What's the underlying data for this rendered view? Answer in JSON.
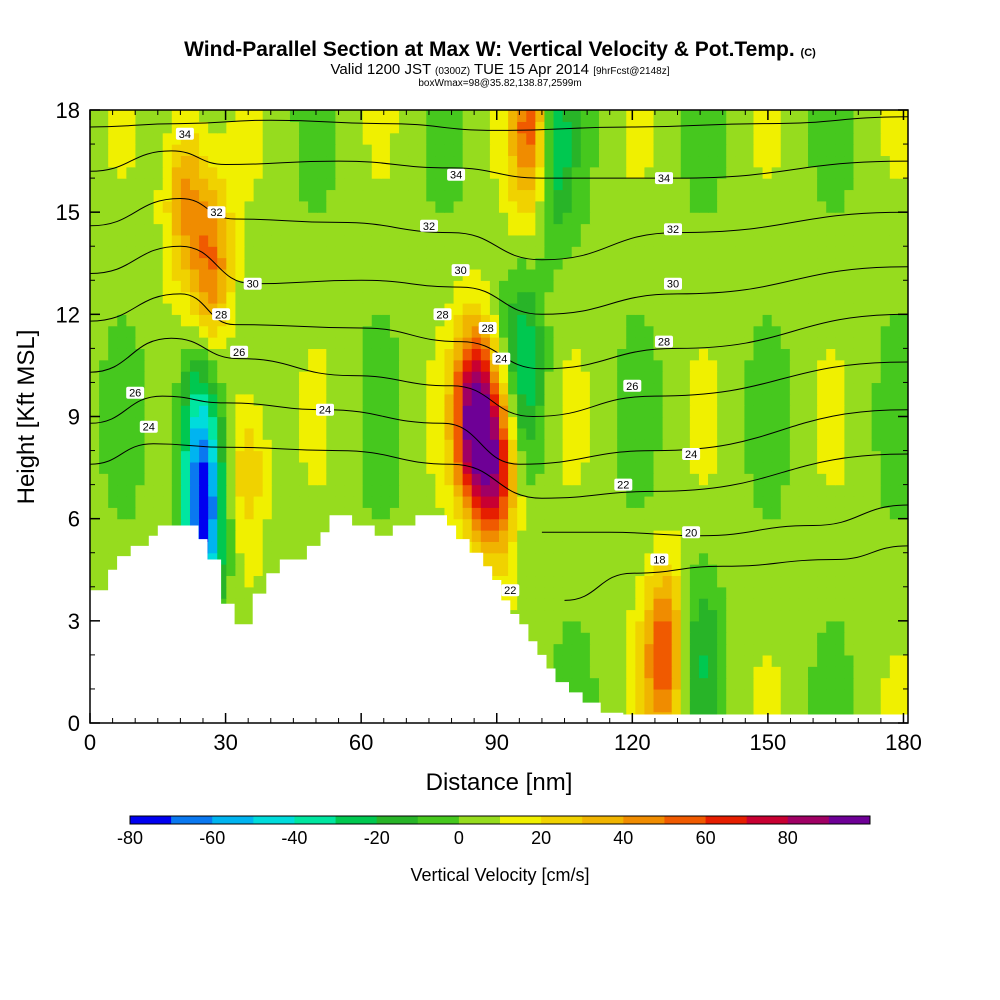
{
  "header": {
    "title": "Wind-Parallel Section at Max W: Vertical Velocity & Pot.Temp.",
    "title_mark": "(C)",
    "valid_prefix": "Valid 1200 JST",
    "valid_utc": "(0300Z)",
    "valid_date": "TUE 15 Apr 2014",
    "forecast_info": "[9hrFcst@2148z]",
    "box_info": "boxWmax=98@35.82,138.87,2599m"
  },
  "chart_data": {
    "type": "heatmap",
    "xlabel": "Distance [nm]",
    "ylabel": "Height [Kft MSL]",
    "xlim": [
      0,
      181
    ],
    "ylim": [
      0,
      18
    ],
    "xticks": [
      0,
      30,
      60,
      90,
      120,
      150,
      180
    ],
    "yticks": [
      0,
      3,
      6,
      9,
      12,
      15,
      18
    ],
    "colorbar": {
      "label": "Vertical Velocity [cm/s]",
      "levels": [
        -80,
        -70,
        -60,
        -50,
        -40,
        -30,
        -20,
        -10,
        0,
        10,
        20,
        30,
        40,
        50,
        60,
        70,
        80,
        90
      ],
      "colors": [
        "#0000f0",
        "#0a78f0",
        "#00b4f0",
        "#00dcdc",
        "#00e6a0",
        "#00c850",
        "#28b428",
        "#46c81e",
        "#96dc1e",
        "#f0f000",
        "#f0d200",
        "#f0b400",
        "#f08c00",
        "#f05a00",
        "#e61e00",
        "#c80032",
        "#a00064",
        "#6e0096"
      ],
      "tick_labels": [
        -80,
        -60,
        -40,
        -20,
        0,
        20,
        40,
        60,
        80
      ]
    },
    "terrain": [
      [
        0,
        3.9
      ],
      [
        4,
        3.9
      ],
      [
        4,
        4.5
      ],
      [
        6,
        4.5
      ],
      [
        6,
        4.9
      ],
      [
        9,
        4.9
      ],
      [
        9,
        5.2
      ],
      [
        13,
        5.2
      ],
      [
        13,
        5.5
      ],
      [
        15,
        5.5
      ],
      [
        15,
        5.8
      ],
      [
        24,
        5.8
      ],
      [
        24,
        5.4
      ],
      [
        26,
        5.4
      ],
      [
        26,
        4.8
      ],
      [
        29,
        4.8
      ],
      [
        29,
        3.5
      ],
      [
        32,
        3.5
      ],
      [
        32,
        2.9
      ],
      [
        36,
        2.9
      ],
      [
        36,
        3.8
      ],
      [
        39,
        3.8
      ],
      [
        39,
        4.4
      ],
      [
        42,
        4.4
      ],
      [
        42,
        4.8
      ],
      [
        48,
        4.8
      ],
      [
        48,
        5.2
      ],
      [
        51,
        5.2
      ],
      [
        51,
        5.6
      ],
      [
        53,
        5.6
      ],
      [
        53,
        6.1
      ],
      [
        58,
        6.1
      ],
      [
        58,
        5.8
      ],
      [
        63,
        5.8
      ],
      [
        63,
        5.5
      ],
      [
        67,
        5.5
      ],
      [
        67,
        5.8
      ],
      [
        72,
        5.8
      ],
      [
        72,
        6.1
      ],
      [
        79,
        6.1
      ],
      [
        79,
        5.8
      ],
      [
        81,
        5.8
      ],
      [
        81,
        5.4
      ],
      [
        84,
        5.4
      ],
      [
        84,
        5.0
      ],
      [
        87,
        5.0
      ],
      [
        87,
        4.6
      ],
      [
        89,
        4.6
      ],
      [
        89,
        4.2
      ],
      [
        91,
        4.2
      ],
      [
        91,
        3.6
      ],
      [
        93,
        3.6
      ],
      [
        93,
        3.2
      ],
      [
        95,
        3.2
      ],
      [
        95,
        2.9
      ],
      [
        97,
        2.9
      ],
      [
        97,
        2.4
      ],
      [
        99,
        2.4
      ],
      [
        99,
        2.0
      ],
      [
        101,
        2.0
      ],
      [
        101,
        1.6
      ],
      [
        103,
        1.6
      ],
      [
        103,
        1.2
      ],
      [
        106,
        1.2
      ],
      [
        106,
        0.9
      ],
      [
        109,
        0.9
      ],
      [
        109,
        0.6
      ],
      [
        113,
        0.6
      ],
      [
        113,
        0.3
      ],
      [
        118,
        0.3
      ],
      [
        118,
        0.0
      ]
    ],
    "velocity_features": [
      {
        "x": 21,
        "y": 15.5,
        "value": 40
      },
      {
        "x": 25,
        "y": 6.0,
        "value": -75
      },
      {
        "x": 24,
        "y": 9.0,
        "value": -40
      },
      {
        "x": 27,
        "y": 13.5,
        "value": 45
      },
      {
        "x": 35,
        "y": 7.5,
        "value": 30
      },
      {
        "x": 85,
        "y": 9.0,
        "value": 90
      },
      {
        "x": 90,
        "y": 7.5,
        "value": 70
      },
      {
        "x": 96,
        "y": 10.5,
        "value": -30
      },
      {
        "x": 98,
        "y": 17.5,
        "value": 60
      },
      {
        "x": 102,
        "y": 17.0,
        "value": -40
      },
      {
        "x": 127,
        "y": 2.0,
        "value": 55
      },
      {
        "x": 135,
        "y": 2.0,
        "value": -20
      }
    ],
    "theta_contours": [
      {
        "label": "34",
        "levels": [
          "34"
        ],
        "points": [
          [
            0,
            17.5
          ],
          [
            20,
            17.6
          ],
          [
            40,
            17.7
          ],
          [
            65,
            17.6
          ],
          [
            90,
            17.4
          ],
          [
            120,
            17.5
          ],
          [
            150,
            17.6
          ],
          [
            181,
            17.8
          ]
        ]
      },
      {
        "label": "34",
        "points": [
          [
            0,
            16.2
          ],
          [
            18,
            16.8
          ],
          [
            30,
            16.4
          ],
          [
            55,
            16.5
          ],
          [
            80,
            16.3
          ],
          [
            100,
            16.0
          ],
          [
            130,
            16.0
          ],
          [
            181,
            16.5
          ]
        ]
      },
      {
        "label": "32",
        "points": [
          [
            0,
            14.6
          ],
          [
            20,
            15.4
          ],
          [
            32,
            14.8
          ],
          [
            55,
            14.7
          ],
          [
            80,
            14.4
          ],
          [
            100,
            13.6
          ],
          [
            130,
            14.4
          ],
          [
            181,
            15.0
          ]
        ]
      },
      {
        "label": "30",
        "points": [
          [
            0,
            13.2
          ],
          [
            20,
            14.0
          ],
          [
            36,
            12.9
          ],
          [
            60,
            13.0
          ],
          [
            82,
            12.8
          ],
          [
            100,
            12.0
          ],
          [
            130,
            12.6
          ],
          [
            181,
            13.4
          ]
        ]
      },
      {
        "label": "28",
        "points": [
          [
            0,
            11.8
          ],
          [
            20,
            12.6
          ],
          [
            32,
            11.7
          ],
          [
            60,
            11.6
          ],
          [
            82,
            11.2
          ],
          [
            100,
            10.4
          ],
          [
            130,
            11.0
          ],
          [
            181,
            12.0
          ]
        ]
      },
      {
        "label": "26",
        "points": [
          [
            0,
            10.3
          ],
          [
            18,
            11.3
          ],
          [
            33,
            10.7
          ],
          [
            58,
            10.2
          ],
          [
            80,
            9.9
          ],
          [
            98,
            9.0
          ],
          [
            125,
            9.6
          ],
          [
            181,
            10.6
          ]
        ]
      },
      {
        "label": "24",
        "points": [
          [
            0,
            8.8
          ],
          [
            16,
            9.6
          ],
          [
            30,
            9.4
          ],
          [
            52,
            9.2
          ],
          [
            78,
            8.8
          ],
          [
            95,
            7.6
          ],
          [
            125,
            8.0
          ],
          [
            181,
            9.2
          ]
        ]
      },
      {
        "label": "22",
        "points": [
          [
            0,
            7.6
          ],
          [
            14,
            8.2
          ],
          [
            30,
            8.1
          ],
          [
            55,
            8.0
          ],
          [
            80,
            7.6
          ],
          [
            100,
            6.6
          ],
          [
            125,
            6.8
          ],
          [
            181,
            7.9
          ]
        ]
      },
      {
        "label": "20",
        "points": [
          [
            100,
            5.6
          ],
          [
            115,
            5.6
          ],
          [
            135,
            5.5
          ],
          [
            160,
            5.8
          ],
          [
            181,
            6.4
          ]
        ]
      },
      {
        "label": "18",
        "points": [
          [
            105,
            3.6
          ],
          [
            120,
            4.4
          ],
          [
            140,
            4.6
          ],
          [
            165,
            4.8
          ],
          [
            181,
            5.2
          ]
        ]
      }
    ],
    "contour_labels": [
      {
        "text": "34",
        "x": 21,
        "y": 17.3
      },
      {
        "text": "34",
        "x": 81,
        "y": 16.1
      },
      {
        "text": "34",
        "x": 127,
        "y": 16.0
      },
      {
        "text": "32",
        "x": 28,
        "y": 15.0
      },
      {
        "text": "32",
        "x": 75,
        "y": 14.6
      },
      {
        "text": "32",
        "x": 129,
        "y": 14.5
      },
      {
        "text": "30",
        "x": 36,
        "y": 12.9
      },
      {
        "text": "30",
        "x": 82,
        "y": 13.3
      },
      {
        "text": "30",
        "x": 129,
        "y": 12.9
      },
      {
        "text": "28",
        "x": 29,
        "y": 12.0
      },
      {
        "text": "28",
        "x": 78,
        "y": 12.0
      },
      {
        "text": "28",
        "x": 88,
        "y": 11.6
      },
      {
        "text": "28",
        "x": 127,
        "y": 11.2
      },
      {
        "text": "26",
        "x": 10,
        "y": 9.7
      },
      {
        "text": "26",
        "x": 33,
        "y": 10.9
      },
      {
        "text": "26",
        "x": 120,
        "y": 9.9
      },
      {
        "text": "24",
        "x": 13,
        "y": 8.7
      },
      {
        "text": "24",
        "x": 52,
        "y": 9.2
      },
      {
        "text": "24",
        "x": 91,
        "y": 10.7
      },
      {
        "text": "24",
        "x": 133,
        "y": 7.9
      },
      {
        "text": "22",
        "x": 118,
        "y": 7.0
      },
      {
        "text": "22",
        "x": 93,
        "y": 3.9
      },
      {
        "text": "20",
        "x": 133,
        "y": 5.6
      },
      {
        "text": "18",
        "x": 126,
        "y": 4.8
      }
    ]
  }
}
